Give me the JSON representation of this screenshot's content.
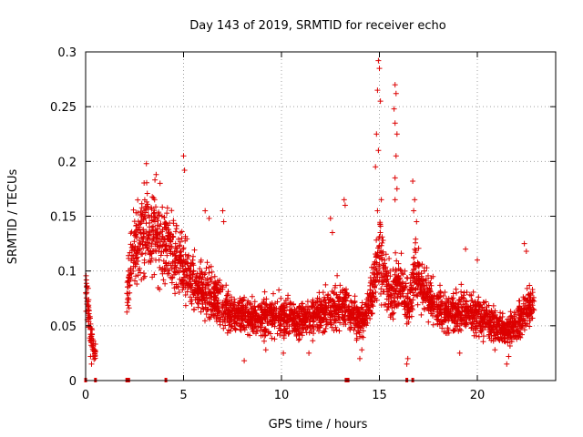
{
  "chart_data": {
    "type": "scatter",
    "title": "Day 143 of 2019, SRMTID for receiver echo",
    "xlabel": "GPS time / hours",
    "ylabel": "SRMTID / TECUs",
    "xlim": [
      0,
      24
    ],
    "ylim": [
      0,
      0.3
    ],
    "grid": true,
    "marker": "+",
    "color": "#dd0000",
    "x_ticks": [
      {
        "value": 0,
        "label": "0"
      },
      {
        "value": 5,
        "label": "5"
      },
      {
        "value": 10,
        "label": "10"
      },
      {
        "value": 15,
        "label": "15"
      },
      {
        "value": 20,
        "label": "20"
      }
    ],
    "y_ticks": [
      {
        "value": 0,
        "label": "0"
      },
      {
        "value": 0.05,
        "label": "0.05"
      },
      {
        "value": 0.1,
        "label": "0.1"
      },
      {
        "value": 0.15,
        "label": "0.15"
      },
      {
        "value": 0.2,
        "label": "0.2"
      },
      {
        "value": 0.25,
        "label": "0.25"
      },
      {
        "value": 0.3,
        "label": "0.3"
      }
    ],
    "baseline_markers_x": [
      0.0,
      0.5,
      2.1,
      2.2,
      4.1,
      13.3,
      13.4,
      16.4,
      16.7
    ],
    "series": [
      {
        "name": "SRMTID",
        "trend": [
          [
            0.0,
            0.085
          ],
          [
            0.1,
            0.07
          ],
          [
            0.2,
            0.05
          ],
          [
            0.3,
            0.04
          ],
          [
            0.4,
            0.03
          ],
          [
            0.5,
            0.025
          ],
          [
            2.1,
            0.07
          ],
          [
            2.3,
            0.11
          ],
          [
            2.6,
            0.125
          ],
          [
            3.0,
            0.14
          ],
          [
            3.4,
            0.135
          ],
          [
            3.8,
            0.13
          ],
          [
            4.2,
            0.125
          ],
          [
            4.6,
            0.11
          ],
          [
            5.0,
            0.1
          ],
          [
            5.4,
            0.09
          ],
          [
            5.8,
            0.085
          ],
          [
            6.2,
            0.08
          ],
          [
            6.6,
            0.075
          ],
          [
            7.0,
            0.068
          ],
          [
            7.5,
            0.062
          ],
          [
            8.0,
            0.06
          ],
          [
            8.5,
            0.058
          ],
          [
            9.0,
            0.057
          ],
          [
            9.5,
            0.058
          ],
          [
            10.0,
            0.06
          ],
          [
            10.5,
            0.057
          ],
          [
            11.0,
            0.055
          ],
          [
            11.5,
            0.057
          ],
          [
            12.0,
            0.06
          ],
          [
            12.5,
            0.065
          ],
          [
            13.0,
            0.07
          ],
          [
            13.5,
            0.062
          ],
          [
            14.0,
            0.055
          ],
          [
            14.4,
            0.06
          ],
          [
            14.7,
            0.09
          ],
          [
            15.0,
            0.12
          ],
          [
            15.3,
            0.09
          ],
          [
            15.6,
            0.075
          ],
          [
            15.9,
            0.09
          ],
          [
            16.2,
            0.08
          ],
          [
            16.5,
            0.07
          ],
          [
            16.8,
            0.1
          ],
          [
            17.1,
            0.09
          ],
          [
            17.5,
            0.075
          ],
          [
            18.0,
            0.065
          ],
          [
            18.5,
            0.062
          ],
          [
            19.0,
            0.06
          ],
          [
            19.5,
            0.065
          ],
          [
            20.0,
            0.06
          ],
          [
            20.5,
            0.055
          ],
          [
            21.0,
            0.05
          ],
          [
            21.5,
            0.045
          ],
          [
            22.0,
            0.05
          ],
          [
            22.5,
            0.065
          ],
          [
            22.9,
            0.072
          ]
        ],
        "spikes": [
          [
            14.95,
            0.292
          ],
          [
            15.0,
            0.285
          ],
          [
            14.9,
            0.265
          ],
          [
            15.05,
            0.255
          ],
          [
            14.85,
            0.225
          ],
          [
            14.95,
            0.21
          ],
          [
            14.8,
            0.195
          ],
          [
            15.1,
            0.165
          ],
          [
            14.9,
            0.155
          ],
          [
            15.8,
            0.27
          ],
          [
            15.85,
            0.262
          ],
          [
            15.75,
            0.248
          ],
          [
            15.8,
            0.235
          ],
          [
            15.9,
            0.225
          ],
          [
            15.85,
            0.205
          ],
          [
            15.8,
            0.185
          ],
          [
            15.9,
            0.175
          ],
          [
            15.8,
            0.165
          ],
          [
            16.7,
            0.182
          ],
          [
            16.8,
            0.165
          ],
          [
            16.75,
            0.155
          ],
          [
            16.9,
            0.145
          ],
          [
            5.0,
            0.205
          ],
          [
            5.05,
            0.192
          ],
          [
            3.1,
            0.198
          ],
          [
            3.6,
            0.188
          ],
          [
            3.8,
            0.18
          ],
          [
            13.2,
            0.165
          ],
          [
            13.25,
            0.16
          ],
          [
            12.5,
            0.148
          ],
          [
            12.6,
            0.135
          ],
          [
            7.0,
            0.155
          ],
          [
            7.05,
            0.145
          ],
          [
            6.1,
            0.155
          ],
          [
            6.3,
            0.148
          ],
          [
            22.4,
            0.125
          ],
          [
            22.5,
            0.118
          ],
          [
            19.4,
            0.12
          ],
          [
            20.0,
            0.11
          ]
        ],
        "lows": [
          [
            16.4,
            0.015
          ],
          [
            16.45,
            0.02
          ],
          [
            14.0,
            0.02
          ],
          [
            14.1,
            0.028
          ],
          [
            21.5,
            0.015
          ],
          [
            21.6,
            0.022
          ],
          [
            0.3,
            0.015
          ],
          [
            0.25,
            0.022
          ],
          [
            8.1,
            0.018
          ],
          [
            9.2,
            0.028
          ],
          [
            10.1,
            0.025
          ],
          [
            11.4,
            0.025
          ],
          [
            19.1,
            0.025
          ],
          [
            20.9,
            0.028
          ]
        ]
      }
    ]
  }
}
